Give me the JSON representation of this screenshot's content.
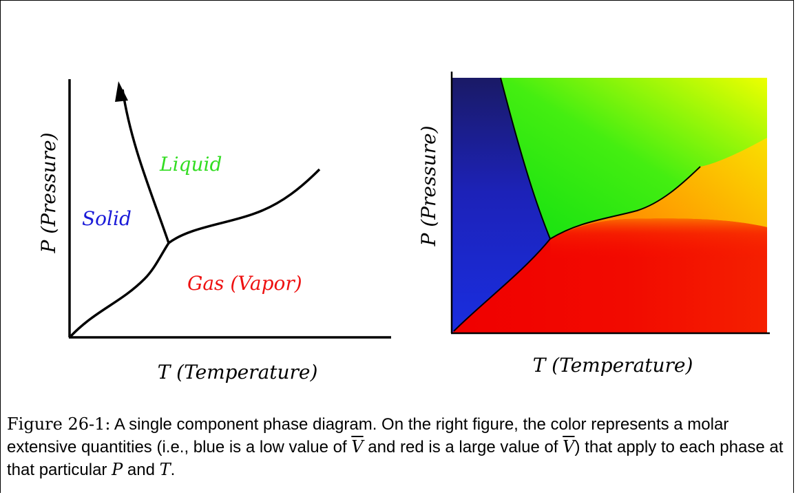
{
  "left_diagram": {
    "y_axis_label": "P (Pressure)",
    "x_axis_label": "T (Temperature)",
    "regions": [
      {
        "label": "Solid",
        "color": "#1a1ad8"
      },
      {
        "label": "Liquid",
        "color": "#33dd22"
      },
      {
        "label": "Gas (Vapor)",
        "color": "#ee1111"
      }
    ]
  },
  "right_diagram": {
    "y_axis_label": "P (Pressure)",
    "x_axis_label": "T (Temperature)",
    "colors": {
      "solid": "#1f23d6",
      "liquid": "#22e022",
      "gas": "#f00000",
      "high": "#f5f500"
    }
  },
  "caption": {
    "label": "Figure 26-1:",
    "part1": " A single component phase diagram. On the right figure, the color represents a molar extensive quantities (i.e., blue is a low value of ",
    "v1": "V",
    "part2": " and red is a large value of ",
    "v2": "V",
    "part3": ") that apply to each phase at that particular ",
    "p": "P",
    "and": " and ",
    "t": "T",
    "end": "."
  }
}
